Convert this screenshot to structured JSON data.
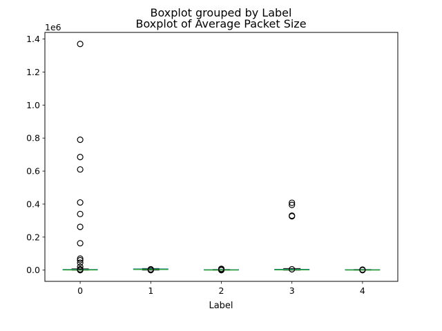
{
  "chart_data": {
    "type": "boxplot",
    "suptitle": "Boxplot grouped by Label",
    "title": "Boxplot of Average Packet Size",
    "xlabel": "Label",
    "ylabel": "",
    "y_offset_label": "1e6",
    "ylim": [
      -68000,
      1440000
    ],
    "y_ticks": [
      0,
      200000,
      400000,
      600000,
      800000,
      1000000,
      1200000,
      1400000
    ],
    "y_tick_labels": [
      "0.0",
      "0.2",
      "0.4",
      "0.6",
      "0.8",
      "1.0",
      "1.2",
      "1.4"
    ],
    "categories": [
      "0",
      "1",
      "2",
      "3",
      "4"
    ],
    "grid": false,
    "colors": {
      "box": "#1f77b4",
      "median": "#2ca02c",
      "flier": "#000000"
    },
    "groups": [
      {
        "label": "0",
        "q1": 0,
        "median": 1500,
        "q3": 3000,
        "whisker_low": 0,
        "whisker_high": 7500,
        "outliers": [
          1370000,
          790000,
          685000,
          610000,
          410000,
          340000,
          262000,
          163000,
          70000,
          60000,
          45000,
          20000,
          5000,
          0
        ]
      },
      {
        "label": "1",
        "q1": 2500,
        "median": 4500,
        "q3": 6500,
        "whisker_low": 500,
        "whisker_high": 10000,
        "outliers": [
          5000,
          0
        ]
      },
      {
        "label": "2",
        "q1": 0,
        "median": 800,
        "q3": 1800,
        "whisker_low": 0,
        "whisker_high": 4000,
        "outliers": [
          8000,
          5000,
          0
        ]
      },
      {
        "label": "3",
        "q1": 0,
        "median": 2000,
        "q3": 4000,
        "whisker_low": 0,
        "whisker_high": 10000,
        "outliers": [
          408000,
          395000,
          330000,
          326000,
          5000
        ]
      },
      {
        "label": "4",
        "q1": 0,
        "median": 800,
        "q3": 1800,
        "whisker_low": 0,
        "whisker_high": 4000,
        "outliers": [
          3000,
          0
        ]
      }
    ]
  }
}
